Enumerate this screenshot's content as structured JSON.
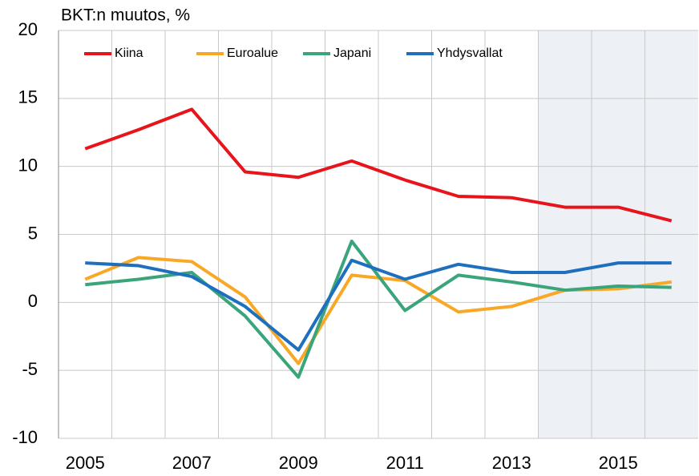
{
  "chart_data": {
    "type": "line",
    "title": "BKT:n muutos, %",
    "x": [
      2005,
      2006,
      2007,
      2008,
      2009,
      2010,
      2011,
      2012,
      2013,
      2014,
      2015,
      2016
    ],
    "xlim": [
      2004.5,
      2016.5
    ],
    "xticks": [
      2005,
      2007,
      2009,
      2011,
      2013,
      2015
    ],
    "xgrid": [
      2005.5,
      2006.5,
      2007.5,
      2008.5,
      2009.5,
      2010.5,
      2011.5,
      2012.5,
      2013.5,
      2014.5,
      2015.5
    ],
    "shaded_region": {
      "from": 2013.5,
      "to": 2016.5,
      "color": "#edf1f6"
    },
    "ylim": [
      -10,
      20
    ],
    "yticks": [
      -10,
      -5,
      0,
      5,
      10,
      15,
      20
    ],
    "grid": true,
    "legend": "top-left",
    "series": [
      {
        "name": "Kiina",
        "color": "#e8141b",
        "values": [
          11.3,
          12.7,
          14.2,
          9.6,
          9.2,
          10.4,
          9.0,
          7.8,
          7.7,
          7.0,
          7.0,
          6.0
        ]
      },
      {
        "name": "Euroalue",
        "color": "#f9a825",
        "values": [
          1.7,
          3.3,
          3.0,
          0.4,
          -4.5,
          2.0,
          1.6,
          -0.7,
          -0.3,
          0.9,
          1.0,
          1.5
        ]
      },
      {
        "name": "Japani",
        "color": "#3aa57a",
        "values": [
          1.3,
          1.7,
          2.2,
          -1.0,
          -5.5,
          4.5,
          -0.6,
          2.0,
          1.5,
          0.9,
          1.2,
          1.1
        ]
      },
      {
        "name": "Yhdysvallat",
        "color": "#1f6fbf",
        "values": [
          2.9,
          2.7,
          1.9,
          -0.3,
          -3.5,
          3.1,
          1.7,
          2.8,
          2.2,
          2.2,
          2.9,
          2.9
        ]
      }
    ]
  }
}
